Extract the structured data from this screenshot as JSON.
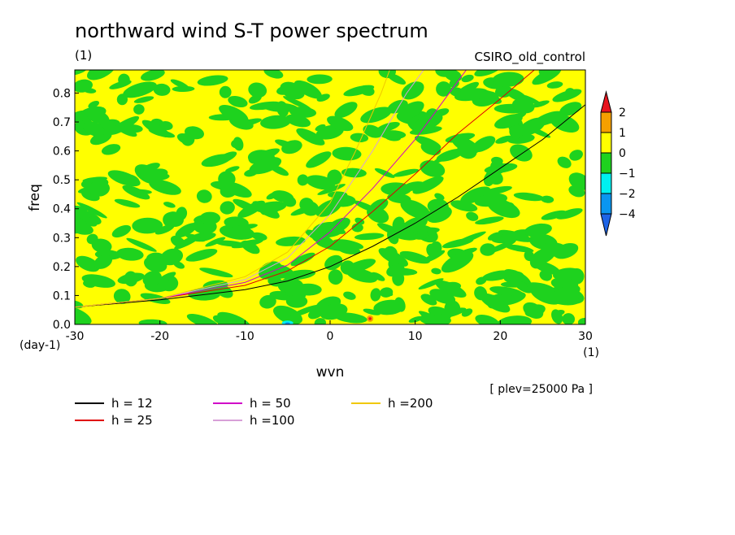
{
  "chart_data": {
    "type": "heatmap",
    "title": "northward wind S-T power spectrum",
    "subtitle": "(1)",
    "run_label": "CSIRO_old_control",
    "xlabel": "wvn",
    "ylabel": "freq",
    "x_unit": "(1)",
    "y_unit": "(day-1)",
    "note": "[ plev=25000 Pa ]",
    "xlim": [
      -30,
      30
    ],
    "ylim": [
      0,
      0.88
    ],
    "x_ticks": [
      "-30",
      "-20",
      "-10",
      "0",
      "10",
      "20",
      "30"
    ],
    "x_tick_values": [
      -30,
      -20,
      -10,
      0,
      10,
      20,
      30
    ],
    "y_ticks": [
      "0.0",
      "0.1",
      "0.2",
      "0.3",
      "0.4",
      "0.5",
      "0.6",
      "0.7",
      "0.8"
    ],
    "y_tick_values": [
      0,
      0.1,
      0.2,
      0.3,
      0.4,
      0.5,
      0.6,
      0.7,
      0.8
    ],
    "colorbar": {
      "labels": [
        "2",
        "1",
        "0",
        "−1",
        "−2",
        "−4"
      ],
      "colors": [
        "#e8141e",
        "#f5a000",
        "#ffff00",
        "#1ed21e",
        "#00f0f0",
        "#0a96f0",
        "#1e64e6"
      ]
    },
    "field_colors": {
      "yellow": "#ffff00",
      "green": "#1ed21e",
      "cyan": "#00f0f0",
      "blue": "#0a96f0",
      "orange": "#f5a000",
      "red": "#e8141e"
    },
    "series": [
      {
        "name": "h = 12",
        "color": "#000000",
        "points": [
          [
            -30,
            0.06
          ],
          [
            -20,
            0.085
          ],
          [
            -10,
            0.12
          ],
          [
            -5,
            0.15
          ],
          [
            0,
            0.2
          ],
          [
            5,
            0.27
          ],
          [
            10,
            0.35
          ],
          [
            15,
            0.44
          ],
          [
            20,
            0.54
          ],
          [
            25,
            0.64
          ],
          [
            30,
            0.76
          ]
        ]
      },
      {
        "name": "h = 25",
        "color": "#e00000",
        "points": [
          [
            -30,
            0.06
          ],
          [
            -20,
            0.09
          ],
          [
            -10,
            0.135
          ],
          [
            -5,
            0.185
          ],
          [
            0,
            0.27
          ],
          [
            5,
            0.39
          ],
          [
            10,
            0.52
          ],
          [
            15,
            0.66
          ],
          [
            20,
            0.78
          ],
          [
            24,
            0.88
          ]
        ]
      },
      {
        "name": "h = 50",
        "color": "#d000c8",
        "points": [
          [
            -30,
            0.06
          ],
          [
            -20,
            0.09
          ],
          [
            -10,
            0.145
          ],
          [
            -5,
            0.205
          ],
          [
            0,
            0.32
          ],
          [
            5,
            0.47
          ],
          [
            10,
            0.64
          ],
          [
            15,
            0.84
          ],
          [
            16,
            0.88
          ]
        ]
      },
      {
        "name": "h =100",
        "color": "#d8a0d8",
        "points": [
          [
            -30,
            0.06
          ],
          [
            -20,
            0.09
          ],
          [
            -10,
            0.155
          ],
          [
            -5,
            0.23
          ],
          [
            0,
            0.38
          ],
          [
            5,
            0.6
          ],
          [
            9,
            0.8
          ],
          [
            11,
            0.88
          ]
        ]
      },
      {
        "name": "h =200",
        "color": "#f0c800",
        "points": [
          [
            -30,
            0.06
          ],
          [
            -20,
            0.09
          ],
          [
            -10,
            0.165
          ],
          [
            -5,
            0.25
          ],
          [
            0,
            0.42
          ],
          [
            3,
            0.6
          ],
          [
            6,
            0.8
          ],
          [
            7,
            0.88
          ]
        ]
      }
    ],
    "legend": [
      {
        "label": "h = 12",
        "color": "#000000"
      },
      {
        "label": "h = 25",
        "color": "#e00000"
      },
      {
        "label": "h = 50",
        "color": "#d000c8"
      },
      {
        "label": "h =100",
        "color": "#d8a0d8"
      },
      {
        "label": "h =200",
        "color": "#f0c800"
      }
    ]
  }
}
